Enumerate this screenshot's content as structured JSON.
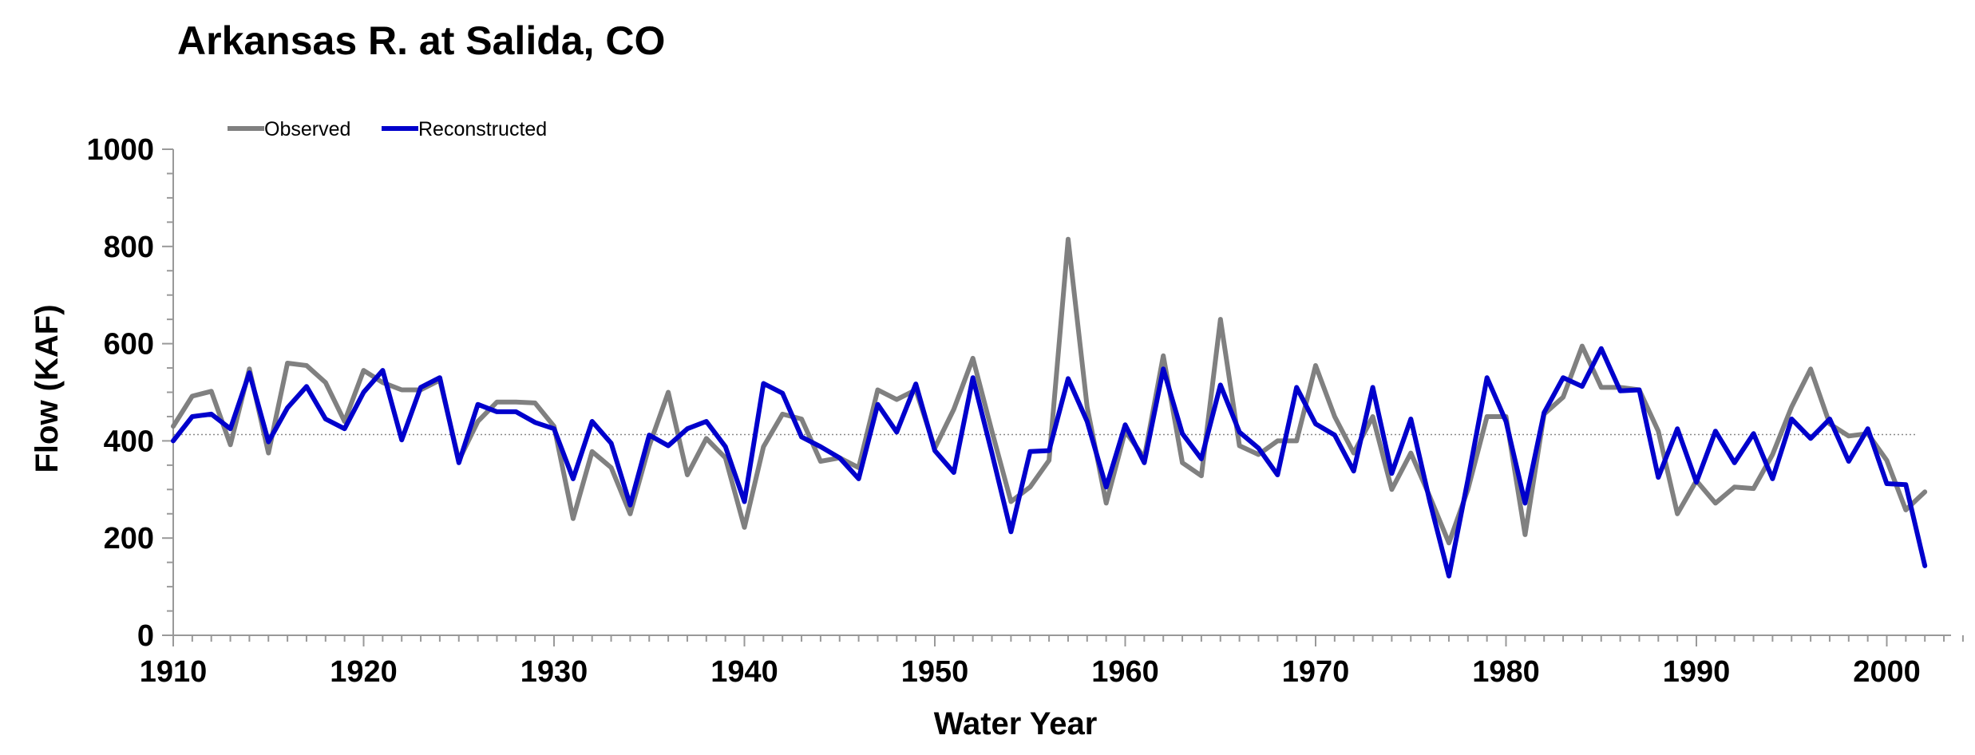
{
  "chart_data": {
    "type": "line",
    "title": "Arkansas R. at Salida, CO",
    "xlabel": "Water Year",
    "ylabel": "Flow (KAF)",
    "xlim": [
      1910,
      2004
    ],
    "ylim": [
      0,
      1000
    ],
    "x_ticks": [
      1910,
      1920,
      1930,
      1940,
      1950,
      1960,
      1970,
      1980,
      1990,
      2000
    ],
    "y_ticks": [
      0,
      200,
      400,
      600,
      800,
      1000
    ],
    "legend_position": "top-left",
    "grid": false,
    "reference_line": {
      "value": 413,
      "style": "dotted"
    },
    "x": [
      1910,
      1911,
      1912,
      1913,
      1914,
      1915,
      1916,
      1917,
      1918,
      1919,
      1920,
      1921,
      1922,
      1923,
      1924,
      1925,
      1926,
      1927,
      1928,
      1929,
      1930,
      1931,
      1932,
      1933,
      1934,
      1935,
      1936,
      1937,
      1938,
      1939,
      1940,
      1941,
      1942,
      1943,
      1944,
      1945,
      1946,
      1947,
      1948,
      1949,
      1950,
      1951,
      1952,
      1953,
      1954,
      1955,
      1956,
      1957,
      1958,
      1959,
      1960,
      1961,
      1962,
      1963,
      1964,
      1965,
      1966,
      1967,
      1968,
      1969,
      1970,
      1971,
      1972,
      1973,
      1974,
      1975,
      1976,
      1977,
      1978,
      1979,
      1980,
      1981,
      1982,
      1983,
      1984,
      1985,
      1986,
      1987,
      1988,
      1989,
      1990,
      1991,
      1992,
      1993,
      1994,
      1995,
      1996,
      1997,
      1998,
      1999,
      2000,
      2001,
      2002
    ],
    "series": [
      {
        "name": "Observed",
        "color": "#808080",
        "values": [
          430,
          492,
          502,
          392,
          548,
          375,
          560,
          555,
          520,
          440,
          545,
          520,
          505,
          505,
          525,
          360,
          440,
          480,
          480,
          478,
          430,
          240,
          378,
          345,
          250,
          390,
          500,
          330,
          405,
          365,
          222,
          388,
          455,
          445,
          358,
          365,
          345,
          505,
          485,
          505,
          385,
          465,
          570,
          420,
          275,
          305,
          360,
          815,
          470,
          272,
          420,
          365,
          575,
          355,
          328,
          650,
          390,
          372,
          400,
          400,
          555,
          450,
          375,
          450,
          300,
          375,
          285,
          190,
          300,
          450,
          450,
          207,
          455,
          490,
          595,
          510,
          510,
          505,
          420,
          250,
          318,
          272,
          305,
          302,
          372,
          470,
          548,
          435,
          410,
          415,
          360,
          258,
          295
        ]
      },
      {
        "name": "Reconstructed",
        "color": "#0000CC",
        "values": [
          400,
          450,
          455,
          425,
          540,
          398,
          468,
          512,
          445,
          425,
          500,
          545,
          402,
          510,
          530,
          355,
          475,
          460,
          460,
          438,
          425,
          322,
          440,
          395,
          268,
          412,
          390,
          425,
          440,
          388,
          275,
          518,
          498,
          408,
          388,
          365,
          322,
          475,
          418,
          517,
          380,
          335,
          530,
          375,
          213,
          378,
          380,
          528,
          440,
          305,
          433,
          355,
          548,
          415,
          363,
          515,
          418,
          385,
          330,
          510,
          435,
          412,
          338,
          510,
          333,
          445,
          275,
          122,
          320,
          530,
          440,
          272,
          458,
          530,
          512,
          590,
          503,
          505,
          325,
          425,
          315,
          420,
          355,
          415,
          322,
          445,
          405,
          445,
          358,
          425,
          312,
          310,
          143
        ]
      }
    ]
  }
}
